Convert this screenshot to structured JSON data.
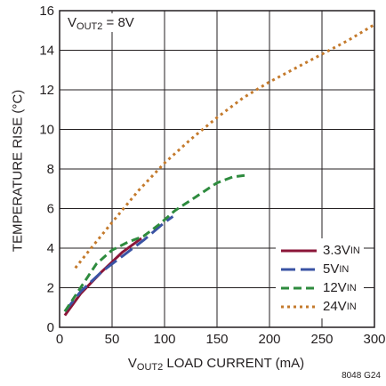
{
  "chart_data": {
    "type": "line",
    "annotation": {
      "pre": "V",
      "sub": "OUT2",
      "post": " = 8V"
    },
    "xlabel": {
      "pre": "V",
      "sub": "OUT2",
      "post": " LOAD CURRENT (mA)"
    },
    "ylabel": "TEMPERATURE RISE (°C)",
    "figure_id": "8048 G24",
    "xlim": [
      0,
      300
    ],
    "ylim": [
      0,
      16
    ],
    "xticks": [
      0,
      50,
      100,
      150,
      200,
      250,
      300
    ],
    "yticks": [
      0,
      2,
      4,
      6,
      8,
      10,
      12,
      14,
      16
    ],
    "grid": true,
    "legend_position": "bottom-right",
    "series": [
      {
        "name": "3.3V",
        "name_sub": "IN",
        "color": "#8b1538",
        "dash": "solid",
        "x": [
          5,
          20,
          40,
          60,
          78
        ],
        "y": [
          0.6,
          1.7,
          2.8,
          3.8,
          4.5
        ]
      },
      {
        "name": "5V",
        "name_sub": "IN",
        "color": "#3a53a4",
        "dash": "long-dash",
        "x": [
          5,
          20,
          40,
          60,
          80,
          100,
          108
        ],
        "y": [
          0.8,
          1.8,
          2.8,
          3.6,
          4.4,
          5.3,
          5.6
        ]
      },
      {
        "name": "12V",
        "name_sub": "IN",
        "color": "#2e8b3e",
        "dash": "dash",
        "x": [
          5,
          20,
          35,
          50,
          65,
          80,
          95,
          110,
          130,
          150,
          165,
          180
        ],
        "y": [
          0.8,
          2.0,
          3.2,
          3.9,
          4.3,
          4.6,
          5.2,
          5.9,
          6.6,
          7.3,
          7.6,
          7.7
        ]
      },
      {
        "name": "24V",
        "name_sub": "IN",
        "color": "#c47a2c",
        "dash": "dot",
        "x": [
          15,
          30,
          50,
          75,
          100,
          125,
          150,
          175,
          200,
          225,
          250,
          275,
          300
        ],
        "y": [
          3.0,
          4.0,
          5.3,
          6.9,
          8.3,
          9.5,
          10.6,
          11.6,
          12.4,
          13.1,
          13.8,
          14.5,
          15.3
        ]
      }
    ]
  }
}
